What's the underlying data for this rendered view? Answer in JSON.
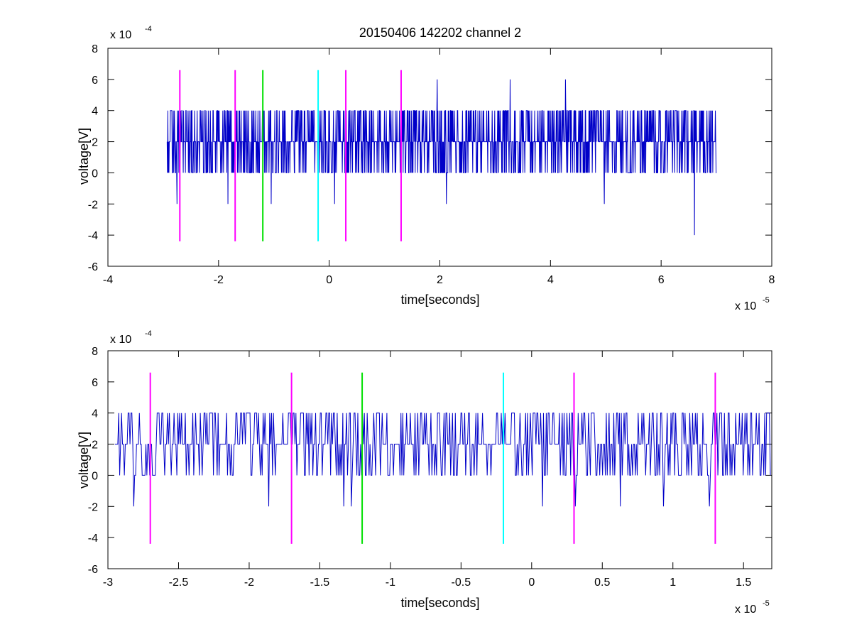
{
  "colors": {
    "signal": "#0000c8",
    "marker_magenta": "#ff00ff",
    "marker_green": "#00e000",
    "marker_cyan": "#00ffff",
    "axes": "#000000",
    "background": "#ffffff"
  },
  "chart_data": [
    {
      "type": "line",
      "title": "20150406 142202 channel 2",
      "xlabel": "time[seconds]",
      "ylabel": "voltage[V]",
      "xlim": [
        -4,
        8
      ],
      "ylim": [
        -6,
        8
      ],
      "x_ticks": [
        -4,
        -2,
        0,
        2,
        4,
        6,
        8
      ],
      "y_ticks": [
        -6,
        -4,
        -2,
        0,
        2,
        4,
        6,
        8
      ],
      "x_tick_labels": [
        "-4",
        "-2",
        "0",
        "2",
        "4",
        "6",
        "8"
      ],
      "y_tick_labels": [
        "-6",
        "-4",
        "-2",
        "0",
        "2",
        "4",
        "6",
        "8"
      ],
      "x_multiplier": "x 10",
      "x_exponent": "-5",
      "y_multiplier": "x 10",
      "y_exponent": "-4",
      "grid": false,
      "signal": {
        "x_start": -2.93,
        "x_end": 7.0,
        "n_points": 1500,
        "levels": [
          -4,
          -2,
          0,
          2,
          4,
          6
        ],
        "typical_value": 2,
        "seed": 7,
        "spikes": [
          {
            "x": -2.75,
            "y": -2
          },
          {
            "x": -1.83,
            "y": -2
          },
          {
            "x": -1.05,
            "y": -2
          },
          {
            "x": 1.95,
            "y": 6
          },
          {
            "x": 3.27,
            "y": 6
          },
          {
            "x": 4.27,
            "y": 6
          },
          {
            "x": 6.6,
            "y": -4
          },
          {
            "x": 0.1,
            "y": -2
          },
          {
            "x": 4.97,
            "y": -2
          },
          {
            "x": 2.12,
            "y": -2
          }
        ]
      },
      "markers": [
        {
          "x": -2.7,
          "y_range": [
            -4.4,
            6.6
          ],
          "color": "magenta"
        },
        {
          "x": -1.7,
          "y_range": [
            -4.4,
            6.6
          ],
          "color": "magenta"
        },
        {
          "x": -1.2,
          "y_range": [
            -4.4,
            6.6
          ],
          "color": "green"
        },
        {
          "x": -0.2,
          "y_range": [
            -4.4,
            6.6
          ],
          "color": "cyan"
        },
        {
          "x": 0.3,
          "y_range": [
            -4.4,
            6.6
          ],
          "color": "magenta"
        },
        {
          "x": 1.3,
          "y_range": [
            -4.4,
            6.6
          ],
          "color": "magenta"
        }
      ]
    },
    {
      "type": "line",
      "title": "",
      "xlabel": "time[seconds]",
      "ylabel": "voltage[V]",
      "xlim": [
        -3.0,
        1.7
      ],
      "ylim": [
        -6,
        8
      ],
      "x_ticks": [
        -3,
        -2.5,
        -2,
        -1.5,
        -1,
        -0.5,
        0,
        0.5,
        1,
        1.5
      ],
      "y_ticks": [
        -6,
        -4,
        -2,
        0,
        2,
        4,
        6,
        8
      ],
      "x_tick_labels": [
        "-3",
        "-2.5",
        "-2",
        "-1.5",
        "-1",
        "-0.5",
        "0",
        "0.5",
        "1",
        "1.5"
      ],
      "y_tick_labels": [
        "-6",
        "-4",
        "-2",
        "0",
        "2",
        "4",
        "6",
        "8"
      ],
      "x_multiplier": "x 10",
      "x_exponent": "-5",
      "y_multiplier": "x 10",
      "y_exponent": "-4",
      "grid": false,
      "signal": {
        "x_start": -2.95,
        "x_end": 1.69,
        "n_points": 700,
        "levels": [
          -2,
          0,
          2,
          4
        ],
        "typical_value": 2,
        "seed": 11,
        "spikes": [
          {
            "x": -2.82,
            "y": -2
          },
          {
            "x": -1.86,
            "y": -2
          },
          {
            "x": -1.33,
            "y": -2
          },
          {
            "x": -1.28,
            "y": -2
          },
          {
            "x": 0.08,
            "y": -2
          },
          {
            "x": 0.31,
            "y": -2
          },
          {
            "x": 0.63,
            "y": -2
          },
          {
            "x": 0.93,
            "y": -2
          },
          {
            "x": 1.26,
            "y": -2
          }
        ]
      },
      "markers": [
        {
          "x": -2.7,
          "y_range": [
            -4.4,
            6.6
          ],
          "color": "magenta"
        },
        {
          "x": -1.7,
          "y_range": [
            -4.4,
            6.6
          ],
          "color": "magenta"
        },
        {
          "x": -1.2,
          "y_range": [
            -4.4,
            6.6
          ],
          "color": "green"
        },
        {
          "x": -0.2,
          "y_range": [
            -4.4,
            6.6
          ],
          "color": "cyan"
        },
        {
          "x": 0.3,
          "y_range": [
            -4.4,
            6.6
          ],
          "color": "magenta"
        },
        {
          "x": 1.3,
          "y_range": [
            -4.4,
            6.6
          ],
          "color": "magenta"
        }
      ]
    }
  ]
}
